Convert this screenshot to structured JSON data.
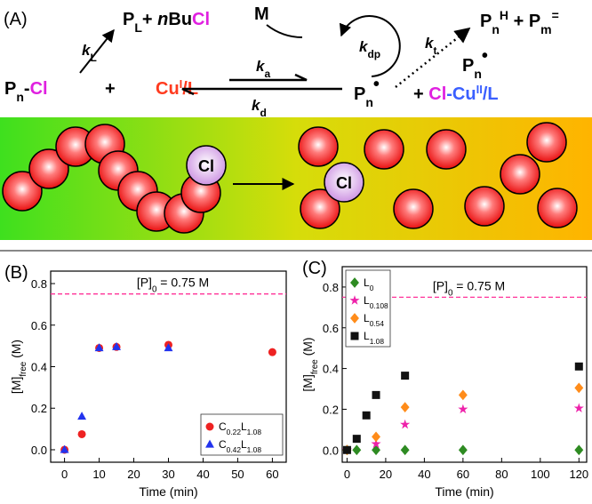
{
  "panel_a": {
    "label": "(A)",
    "products_l": [
      "P",
      "L",
      "+ ",
      "n",
      "Bu",
      "Cl"
    ],
    "k_l": [
      "k",
      "L"
    ],
    "initiator": [
      "P",
      "n",
      "-",
      "Cl"
    ],
    "plus": "+",
    "catalyst": [
      "Cu",
      "I",
      "/L"
    ],
    "k_a": [
      "k",
      "a"
    ],
    "k_d": [
      "k",
      "d"
    ],
    "monomer": "M",
    "k_dp": [
      "k",
      "dp"
    ],
    "radical": [
      "P",
      "n",
      "•"
    ],
    "k_t": [
      "k",
      "t"
    ],
    "termination": [
      "P",
      "n",
      "H",
      " + P",
      "m",
      "="
    ],
    "radical2": [
      "P",
      "n",
      "•"
    ],
    "deactivator": [
      "+ ",
      "Cl",
      "-Cu",
      "II",
      "/L"
    ],
    "sphere_label_1": "Cl",
    "sphere_label_2": "Cl"
  },
  "chart_data": [
    {
      "type": "scatter",
      "panel": "(B)",
      "xlabel": "Time (min)",
      "ylabel": "[M]free (M)",
      "xlim": [
        -4,
        64
      ],
      "ylim": [
        -0.06,
        0.86
      ],
      "xticks": [
        0,
        10,
        20,
        30,
        40,
        50,
        60
      ],
      "yticks": [
        {
          "value": 0,
          "label": "0.0"
        },
        0.2,
        0.4,
        0.6,
        0.8
      ],
      "hline": 0.75,
      "hline_color": "#ff3399",
      "annotation": "[P]0 = 0.75 M",
      "legend": "lower right",
      "series": [
        {
          "name": "C0.22L1.08",
          "color": "#ee2222",
          "marker": "circle",
          "x": [
            0,
            5,
            10,
            15,
            30,
            60
          ],
          "values": [
            0,
            0.075,
            0.49,
            0.495,
            0.505,
            0.47
          ]
        },
        {
          "name": "C0.42L1.08",
          "color": "#2233ee",
          "marker": "triangle",
          "x": [
            0,
            5,
            10,
            15,
            30
          ],
          "values": [
            0,
            0.16,
            0.49,
            0.495,
            0.49
          ]
        }
      ]
    },
    {
      "type": "scatter",
      "panel": "(C)",
      "xlabel": "Time (min)",
      "ylabel": "[M]free (M)",
      "xlim": [
        -2.5,
        124
      ],
      "ylim": [
        -0.06,
        0.9
      ],
      "xticks": [
        0,
        20,
        40,
        60,
        80,
        100,
        120
      ],
      "yticks": [
        {
          "value": 0,
          "label": "0.0"
        },
        0.2,
        0.4,
        0.6,
        0.8
      ],
      "hline": 0.75,
      "hline_color": "#ff3399",
      "annotation": "[P]0 = 0.75 M",
      "legend": "upper left",
      "series": [
        {
          "name": "L0",
          "color": "#2e8b22",
          "marker": "diamond",
          "x": [
            0,
            5,
            15,
            30,
            60,
            120
          ],
          "values": [
            0,
            0,
            0,
            0,
            0,
            0
          ]
        },
        {
          "name": "L0.108",
          "color": "#ee22aa",
          "marker": "star",
          "x": [
            0,
            15,
            30,
            60,
            120
          ],
          "values": [
            0,
            0.03,
            0.125,
            0.2,
            0.205
          ]
        },
        {
          "name": "L0.54",
          "color": "#ff8c1a",
          "marker": "diamond",
          "x": [
            0,
            15,
            30,
            60,
            120
          ],
          "values": [
            0,
            0.065,
            0.21,
            0.27,
            0.305
          ]
        },
        {
          "name": "L1.08",
          "color": "#111111",
          "marker": "square",
          "x": [
            0,
            5,
            10,
            15,
            30,
            120
          ],
          "values": [
            0,
            0.055,
            0.17,
            0.27,
            0.365,
            0.41
          ]
        }
      ]
    }
  ]
}
